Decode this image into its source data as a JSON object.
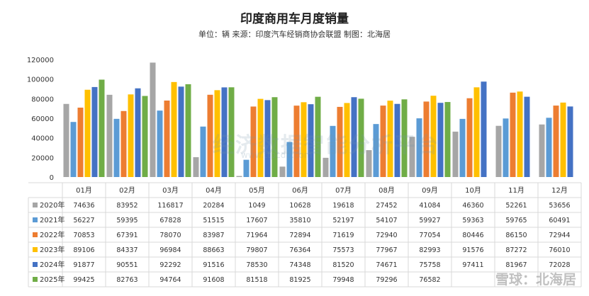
{
  "chart_data": {
    "type": "bar",
    "title": "印度商用车月度销量",
    "subtitle": "单位：辆 来源：印度汽车经销商协会联盟 制图：北海居",
    "categories": [
      "01月",
      "02月",
      "03月",
      "04月",
      "05月",
      "06月",
      "07月",
      "08月",
      "09月",
      "10月",
      "11月",
      "12月"
    ],
    "ylim": [
      0,
      120000
    ],
    "yticks": [
      0,
      20000,
      40000,
      60000,
      80000,
      100000,
      120000
    ],
    "grid": false,
    "legend_position": "table-left",
    "series": [
      {
        "name": "2020年",
        "color": "#a6a6a6",
        "values": [
          74636,
          83952,
          116817,
          20284,
          1049,
          10628,
          19618,
          27452,
          41084,
          46360,
          52261,
          53656
        ]
      },
      {
        "name": "2021年",
        "color": "#5b9bd5",
        "values": [
          56227,
          59395,
          67828,
          51515,
          17607,
          35810,
          52197,
          54107,
          59927,
          59363,
          59765,
          60491
        ]
      },
      {
        "name": "2022年",
        "color": "#ed7d31",
        "values": [
          70853,
          67391,
          78070,
          83987,
          71964,
          72894,
          71619,
          72940,
          77054,
          80446,
          86150,
          72944
        ]
      },
      {
        "name": "2023年",
        "color": "#ffc000",
        "values": [
          89106,
          84337,
          96984,
          88663,
          79807,
          76364,
          75573,
          77967,
          82993,
          91576,
          87272,
          76010
        ]
      },
      {
        "name": "2024年",
        "color": "#4472c4",
        "values": [
          91877,
          90551,
          92292,
          91516,
          78530,
          74348,
          81520,
          74671,
          75758,
          97411,
          81967,
          72028
        ]
      },
      {
        "name": "2025年",
        "color": "#70ad47",
        "values": [
          99425,
          82763,
          94764,
          91608,
          81518,
          81925,
          79948,
          79296,
          76582,
          null,
          null,
          null
        ]
      }
    ]
  },
  "watermark": {
    "text": "经济数据智能分析平台",
    "url": "www.ttpcdb.com"
  },
  "brand": "雪球：北海居"
}
